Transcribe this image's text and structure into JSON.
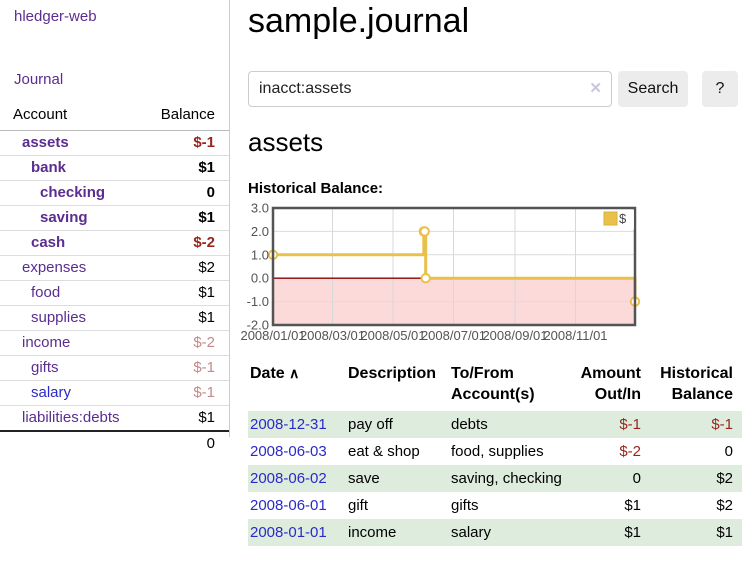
{
  "colors": {
    "accent_purple": "#5b2d90",
    "link_blue": "#2a2ac8",
    "negative": "#9a251c",
    "negative_muted": "#c28a8a",
    "row_stripe_green": "#deecde",
    "chart_line_gold": "#E8C04A",
    "chart_negative_region_pink": "#fcdada",
    "chart_zero_line": "#8b0000",
    "chart_axis_gray": "#545454",
    "button_gray": "#ececec"
  },
  "sidebar": {
    "brand": "hledger-web",
    "nav": {
      "journal": "Journal"
    },
    "accounts_table": {
      "headers": {
        "account": "Account",
        "balance": "Balance"
      },
      "rows": [
        {
          "name": "assets",
          "indent": 0,
          "bold": true,
          "balance": "$-1"
        },
        {
          "name": "bank",
          "indent": 1,
          "bold": true,
          "balance": "$1"
        },
        {
          "name": "checking",
          "indent": 2,
          "bold": true,
          "balance": "0"
        },
        {
          "name": "saving",
          "indent": 2,
          "bold": true,
          "balance": "$1"
        },
        {
          "name": "cash",
          "indent": 1,
          "bold": true,
          "balance": "$-2"
        },
        {
          "name": "expenses",
          "indent": 0,
          "bold": false,
          "balance": "$2"
        },
        {
          "name": "food",
          "indent": 1,
          "bold": false,
          "balance": "$1"
        },
        {
          "name": "supplies",
          "indent": 1,
          "bold": false,
          "balance": "$1"
        },
        {
          "name": "income",
          "indent": 0,
          "bold": false,
          "balance": "$-2"
        },
        {
          "name": "gifts",
          "indent": 1,
          "bold": false,
          "balance": "$-1"
        },
        {
          "name": "salary",
          "indent": 1,
          "bold": false,
          "balance": "$-1",
          "blue": true
        },
        {
          "name": "liabilities:debts",
          "indent": 0,
          "bold": false,
          "balance": "$1"
        }
      ],
      "total": "0"
    }
  },
  "main": {
    "title": "sample.journal",
    "search": {
      "value": "inacct:assets",
      "clear_icon": "✕",
      "button_label": "Search",
      "help_label": "?"
    },
    "account_heading": "assets",
    "chart_label": "Historical Balance:"
  },
  "chart_data": {
    "type": "line",
    "style": "steps",
    "title": "Historical Balance:",
    "series": [
      {
        "name": "$",
        "color": "#E8C04A",
        "points": [
          {
            "date": "2008-01-01",
            "balance": 1
          },
          {
            "date": "2008-06-01",
            "balance": 2
          },
          {
            "date": "2008-06-02",
            "balance": 2
          },
          {
            "date": "2008-06-03",
            "balance": 0
          },
          {
            "date": "2008-12-31",
            "balance": -1
          }
        ]
      }
    ],
    "xlim": [
      "2008-01-01",
      "2008-12-31"
    ],
    "ylim": [
      -2,
      3
    ],
    "x_tick_labels": [
      "2008/01/01",
      "2008/03/01",
      "2008/05/01",
      "2008/07/01",
      "2008/09/01",
      "2008/11/01"
    ],
    "y_tick_values": [
      3,
      2,
      1,
      0,
      -1,
      -2
    ],
    "y_tick_labels": [
      "3.0",
      "2.0",
      "1.0",
      "0.0",
      "-1.0",
      "-2.0"
    ],
    "legend": {
      "label": "$",
      "position": "top-right"
    },
    "grid": true,
    "negative_region_shaded": true
  },
  "register": {
    "headers": [
      "Date",
      "Description",
      "To/From Account(s)",
      "Amount Out/In",
      "Historical Balance"
    ],
    "sort_icon": "∧",
    "rows": [
      {
        "date": "2008-12-31",
        "description": "pay off",
        "accounts": "debts",
        "amount": "$-1",
        "balance": "$-1"
      },
      {
        "date": "2008-06-03",
        "description": "eat & shop",
        "accounts": "food, supplies",
        "amount": "$-2",
        "balance": "0"
      },
      {
        "date": "2008-06-02",
        "description": "save",
        "accounts": "saving, checking",
        "amount": "0",
        "balance": "$2"
      },
      {
        "date": "2008-06-01",
        "description": "gift",
        "accounts": "gifts",
        "amount": "$1",
        "balance": "$2"
      },
      {
        "date": "2008-01-01",
        "description": "income",
        "accounts": "salary",
        "amount": "$1",
        "balance": "$1"
      }
    ]
  }
}
